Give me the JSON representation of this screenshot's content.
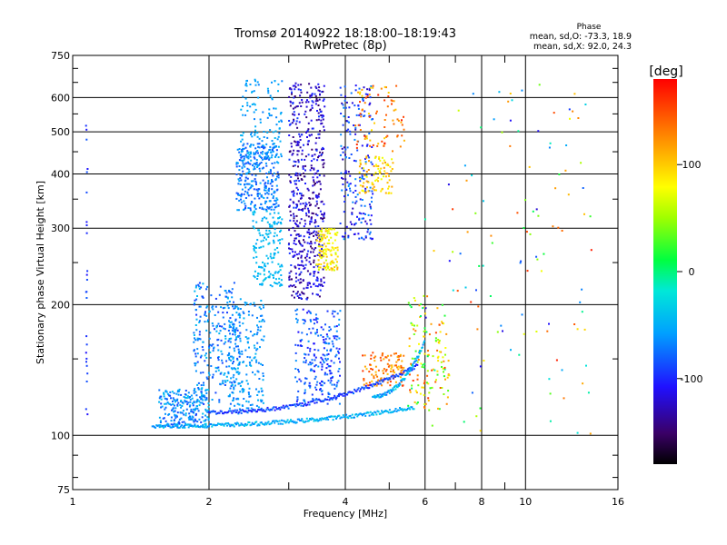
{
  "chart_data": {
    "type": "scatter",
    "title": "Tromsø 20140922 18:18:00–18:19:43",
    "subtitle": "RwPretec (8p)",
    "xlabel": "Frequency [MHz]",
    "ylabel": "Stationary phase Virtual Height [km]",
    "x_scale": "log",
    "y_scale": "log",
    "xlim": [
      1,
      16
    ],
    "ylim": [
      75,
      750
    ],
    "x_ticks": [
      "1",
      "2",
      "4",
      "6",
      "8",
      "10",
      "16"
    ],
    "y_ticks": [
      "75",
      "100",
      "200",
      "300",
      "400",
      "500",
      "600",
      "750"
    ],
    "grid": true,
    "stats": {
      "heading": "Phase",
      "o_line": "mean, sd,O: -73.3, 18.9",
      "x_line": "mean, sd,X:  92.0, 24.3"
    },
    "colorbar": {
      "label": "[deg]",
      "range": [
        -180,
        180
      ],
      "ticks": [
        "100",
        "0",
        "-100"
      ],
      "colormap": "rainbow"
    },
    "clusters": [
      {
        "f": [
          1.07,
          1.08
        ],
        "h": [
          105,
          560
        ],
        "phase": [
          -110,
          -80
        ],
        "n": 25
      },
      {
        "f": [
          1.55,
          2.0
        ],
        "h": [
          104,
          128
        ],
        "phase": [
          -90,
          -40
        ],
        "n": 230
      },
      {
        "f": [
          1.85,
          2.35
        ],
        "h": [
          118,
          225
        ],
        "phase": [
          -95,
          -40
        ],
        "n": 280
      },
      {
        "f": [
          2.2,
          2.65
        ],
        "h": [
          112,
          205
        ],
        "phase": [
          -75,
          -45
        ],
        "n": 200
      },
      {
        "f": [
          2.3,
          2.85
        ],
        "h": [
          330,
          470
        ],
        "phase": [
          -90,
          -50
        ],
        "n": 300
      },
      {
        "f": [
          2.5,
          2.9
        ],
        "h": [
          220,
          330
        ],
        "phase": [
          -55,
          -35
        ],
        "n": 160
      },
      {
        "f": [
          2.35,
          2.9
        ],
        "h": [
          430,
          660
        ],
        "phase": [
          -70,
          -45
        ],
        "n": 130
      },
      {
        "f": [
          3.0,
          3.6
        ],
        "h": [
          205,
          650
        ],
        "phase": [
          -150,
          -90
        ],
        "n": 560
      },
      {
        "f": [
          3.1,
          3.9
        ],
        "h": [
          118,
          195
        ],
        "phase": [
          -110,
          -60
        ],
        "n": 230
      },
      {
        "f": [
          3.45,
          3.85
        ],
        "h": [
          240,
          300
        ],
        "phase": [
          60,
          110
        ],
        "n": 120
      },
      {
        "f": [
          3.9,
          4.6
        ],
        "h": [
          280,
          640
        ],
        "phase": [
          -130,
          -60
        ],
        "n": 200
      },
      {
        "f": [
          4.3,
          5.1
        ],
        "h": [
          360,
          440
        ],
        "phase": [
          70,
          130
        ],
        "n": 90
      },
      {
        "f": [
          4.35,
          5.4
        ],
        "h": [
          130,
          155
        ],
        "phase": [
          100,
          160
        ],
        "n": 110
      },
      {
        "f": [
          4.2,
          5.4
        ],
        "h": [
          450,
          650
        ],
        "phase": [
          90,
          170
        ],
        "n": 80
      },
      {
        "f": [
          5.5,
          6.8
        ],
        "h": [
          115,
          210
        ],
        "phase": [
          0,
          160
        ],
        "n": 140
      },
      {
        "f": [
          6.0,
          14.0
        ],
        "h": [
          100,
          650
        ],
        "phase": [
          -120,
          170
        ],
        "n": 120
      }
    ],
    "traces": [
      {
        "f": [
          1.5,
          5.7
        ],
        "h": [
          105,
          116
        ],
        "phase": [
          -70,
          -30
        ],
        "n": 260
      },
      {
        "f": [
          2.0,
          5.8
        ],
        "h": [
          113,
          145
        ],
        "phase": [
          -110,
          -70
        ],
        "n": 200
      },
      {
        "f": [
          4.6,
          6.0
        ],
        "h": [
          123,
          165
        ],
        "phase": [
          -80,
          -20
        ],
        "n": 80
      }
    ]
  }
}
